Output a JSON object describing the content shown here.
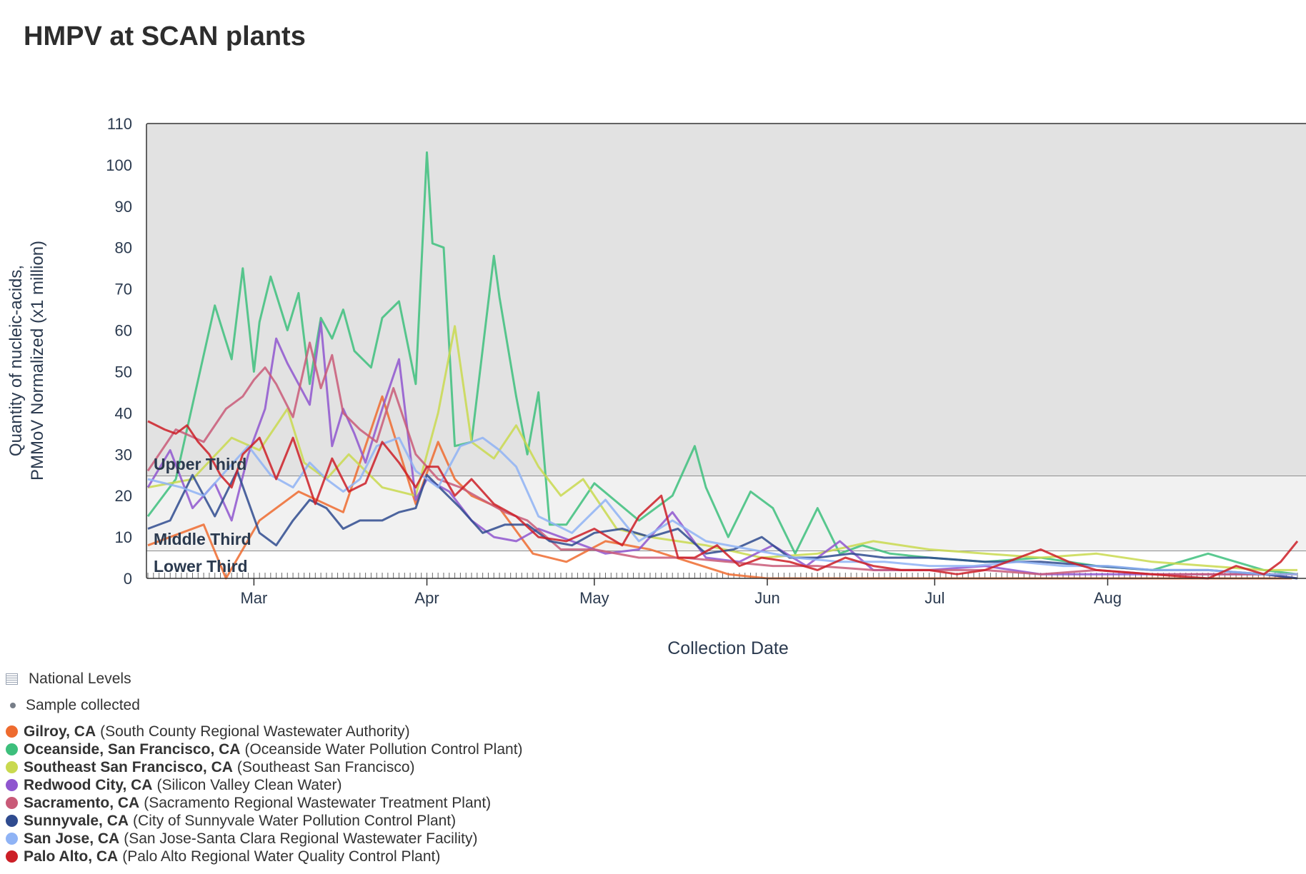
{
  "title": "HMPV at SCAN plants",
  "chart_data": {
    "type": "line",
    "title": "HMPV at SCAN plants",
    "xlabel": "Collection Date",
    "ylabel_lines": [
      "Quantity of nucleic-acids,",
      "PMMoV Normalized (x1 million)"
    ],
    "ylim": [
      0,
      110
    ],
    "yticks": [
      0,
      10,
      20,
      30,
      40,
      50,
      60,
      70,
      80,
      90,
      100,
      110
    ],
    "x_range_days": [
      0,
      206
    ],
    "x_start_date": "Feb 10",
    "xticks": [
      {
        "label": "Mar",
        "day": 19
      },
      {
        "label": "Apr",
        "day": 50
      },
      {
        "label": "May",
        "day": 80
      },
      {
        "label": "Jun",
        "day": 111
      },
      {
        "label": "Jul",
        "day": 141
      },
      {
        "label": "Aug",
        "day": 172
      }
    ],
    "bands": [
      {
        "name": "Upper Third",
        "from": 24.7,
        "to": 110,
        "color": "#e2e2e2"
      },
      {
        "name": "Middle Third",
        "from": 6.6,
        "to": 24.7,
        "color": "#f1f1f1"
      },
      {
        "name": "Lower Third",
        "from": 0,
        "to": 6.6,
        "color": "#ffffff"
      }
    ],
    "series": [
      {
        "name": "Gilroy, CA",
        "color": "#ee6b2f",
        "x": [
          0,
          10,
          14,
          20,
          27,
          35,
          42,
          48,
          52,
          55,
          58,
          63,
          69,
          75,
          82,
          90,
          97,
          104,
          111,
          118,
          125,
          140,
          160,
          180,
          200,
          205
        ],
        "y": [
          8,
          13,
          0,
          14,
          21,
          16,
          44,
          18,
          33,
          24,
          20,
          17,
          6,
          4,
          9,
          7,
          4,
          1,
          0,
          0,
          0,
          0,
          0,
          0,
          0,
          0
        ]
      },
      {
        "name": "Oceanside, San Francisco, CA",
        "color": "#3dbf7c",
        "x": [
          0,
          5,
          12,
          15,
          17,
          19,
          20,
          22,
          25,
          27,
          29,
          31,
          33,
          35,
          37,
          40,
          42,
          45,
          48,
          50,
          51,
          53,
          55,
          58,
          62,
          63,
          66,
          68,
          70,
          72,
          75,
          80,
          88,
          94,
          98,
          100,
          104,
          108,
          112,
          116,
          120,
          124,
          128,
          133,
          140,
          150,
          160,
          170,
          180,
          190,
          200,
          206
        ],
        "y": [
          15,
          24,
          66,
          53,
          75,
          50,
          62,
          73,
          60,
          69,
          47,
          63,
          58,
          65,
          55,
          51,
          63,
          67,
          47,
          103,
          81,
          80,
          32,
          33,
          78,
          68,
          44,
          30,
          45,
          13,
          13,
          23,
          14,
          20,
          32,
          22,
          10,
          21,
          17,
          6,
          17,
          6,
          8,
          6,
          5,
          4,
          5,
          3,
          2,
          6,
          2,
          1
        ]
      },
      {
        "name": "Southeast San Francisco, CA",
        "color": "#c9d94f",
        "x": [
          0,
          8,
          15,
          20,
          25,
          28,
          32,
          36,
          42,
          48,
          52,
          55,
          58,
          62,
          66,
          70,
          74,
          78,
          84,
          90,
          100,
          110,
          120,
          130,
          140,
          150,
          160,
          170,
          180,
          190,
          200,
          206
        ],
        "y": [
          22,
          24,
          34,
          31,
          41,
          28,
          24,
          30,
          22,
          20,
          40,
          61,
          33,
          29,
          37,
          27,
          20,
          24,
          12,
          10,
          8,
          5,
          6,
          9,
          7,
          6,
          5,
          6,
          4,
          3,
          2,
          2
        ]
      },
      {
        "name": "Redwood City, CA",
        "color": "#8f56cf",
        "x": [
          0,
          4,
          8,
          12,
          15,
          18,
          21,
          23,
          25,
          27,
          29,
          31,
          33,
          35,
          37,
          39,
          42,
          45,
          48,
          50,
          54,
          58,
          62,
          66,
          70,
          76,
          82,
          88,
          94,
          100,
          106,
          112,
          118,
          124,
          130,
          140,
          150,
          160,
          170,
          180,
          190,
          200,
          206
        ],
        "y": [
          22,
          31,
          17,
          23,
          14,
          30,
          41,
          58,
          52,
          47,
          42,
          62,
          32,
          41,
          35,
          28,
          41,
          53,
          19,
          24,
          21,
          14,
          10,
          9,
          12,
          9,
          6,
          7,
          16,
          5,
          4,
          8,
          3,
          9,
          2,
          2,
          3,
          1,
          1,
          1,
          1,
          1,
          0
        ]
      },
      {
        "name": "Sacramento, CA",
        "color": "#c95a78",
        "x": [
          0,
          5,
          10,
          14,
          17,
          19,
          21,
          23,
          26,
          29,
          31,
          33,
          35,
          38,
          41,
          44,
          48,
          52,
          56,
          60,
          64,
          68,
          74,
          80,
          88,
          96,
          104,
          112,
          120,
          130,
          140,
          150,
          160,
          170,
          180,
          190,
          200,
          206
        ],
        "y": [
          26,
          36,
          33,
          41,
          44,
          48,
          51,
          47,
          39,
          57,
          46,
          54,
          40,
          36,
          33,
          46,
          30,
          24,
          22,
          19,
          16,
          14,
          7,
          7,
          5,
          5,
          4,
          3,
          3,
          2,
          2,
          2,
          1,
          2,
          1,
          1,
          1,
          1
        ]
      },
      {
        "name": "Sunnyvale, CA",
        "color": "#2f4b8f",
        "x": [
          0,
          4,
          8,
          12,
          16,
          20,
          23,
          26,
          29,
          32,
          35,
          38,
          42,
          45,
          48,
          50,
          53,
          56,
          60,
          64,
          68,
          72,
          76,
          80,
          85,
          90,
          95,
          100,
          105,
          110,
          115,
          120,
          126,
          132,
          140,
          150,
          160,
          170,
          180,
          190,
          200,
          206
        ],
        "y": [
          12,
          14,
          25,
          15,
          26,
          11,
          8,
          14,
          19,
          17,
          12,
          14,
          14,
          16,
          17,
          25,
          21,
          17,
          11,
          13,
          13,
          9,
          8,
          11,
          12,
          10,
          12,
          6,
          7,
          10,
          5,
          5,
          6,
          5,
          5,
          4,
          4,
          3,
          2,
          2,
          1,
          0
        ]
      },
      {
        "name": "San Jose, CA",
        "color": "#8fb3f5",
        "x": [
          0,
          6,
          10,
          14,
          18,
          22,
          26,
          29,
          32,
          35,
          38,
          41,
          45,
          48,
          52,
          56,
          60,
          63,
          66,
          70,
          76,
          82,
          88,
          94,
          100,
          108,
          116,
          124,
          132,
          140,
          148,
          156,
          164,
          172,
          180,
          190,
          200,
          206
        ],
        "y": [
          24,
          22,
          20,
          26,
          32,
          25,
          22,
          28,
          24,
          21,
          24,
          32,
          34,
          26,
          22,
          32,
          34,
          31,
          27,
          15,
          11,
          19,
          9,
          14,
          9,
          7,
          5,
          4,
          4,
          3,
          3,
          4,
          3,
          3,
          2,
          2,
          1,
          1
        ]
      },
      {
        "name": "Palo Alto, CA",
        "color": "#cc1f27",
        "x": [
          0,
          3,
          5,
          7,
          9,
          11,
          13,
          15,
          17,
          20,
          23,
          26,
          28,
          30,
          33,
          36,
          39,
          42,
          45,
          48,
          50,
          52,
          55,
          58,
          62,
          66,
          70,
          75,
          80,
          85,
          88,
          92,
          95,
          98,
          102,
          106,
          110,
          115,
          120,
          125,
          130,
          135,
          140,
          145,
          150,
          160,
          165,
          170,
          180,
          190,
          195,
          200,
          203,
          206
        ],
        "y": [
          38,
          36,
          35,
          37,
          33,
          30,
          25,
          22,
          30,
          34,
          24,
          34,
          26,
          18,
          29,
          21,
          23,
          33,
          28,
          22,
          27,
          27,
          20,
          24,
          18,
          15,
          10,
          9,
          12,
          8,
          15,
          20,
          5,
          5,
          8,
          3,
          5,
          4,
          2,
          5,
          3,
          2,
          2,
          1,
          2,
          7,
          4,
          2,
          1,
          0,
          3,
          1,
          4,
          9
        ]
      }
    ]
  },
  "legend": {
    "national_levels": "National Levels",
    "sample_collected": "Sample collected",
    "entries": [
      {
        "city": "Gilroy, CA",
        "plant": "(South County Regional Wastewater Authority)",
        "color": "#ee6b2f"
      },
      {
        "city": "Oceanside, San Francisco, CA",
        "plant": "(Oceanside Water Pollution Control Plant)",
        "color": "#3dbf7c"
      },
      {
        "city": "Southeast San Francisco, CA",
        "plant": "(Southeast San Francisco)",
        "color": "#c9d94f"
      },
      {
        "city": "Redwood City, CA",
        "plant": "(Silicon Valley Clean Water)",
        "color": "#8f56cf"
      },
      {
        "city": "Sacramento, CA",
        "plant": "(Sacramento Regional Wastewater Treatment Plant)",
        "color": "#c95a78"
      },
      {
        "city": "Sunnyvale, CA",
        "plant": "(City of Sunnyvale Water Pollution Control Plant)",
        "color": "#2f4b8f"
      },
      {
        "city": "San Jose, CA",
        "plant": "(San Jose-Santa Clara Regional Wastewater Facility)",
        "color": "#8fb3f5"
      },
      {
        "city": "Palo Alto, CA",
        "plant": "(Palo Alto Regional Water Quality Control Plant)",
        "color": "#cc1f27"
      }
    ]
  }
}
